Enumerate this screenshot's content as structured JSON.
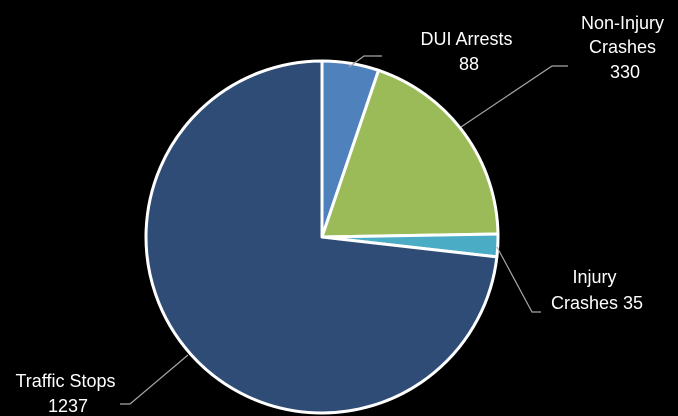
{
  "chart_data": {
    "type": "pie",
    "start_angle_deg": 0,
    "direction": "clockwise",
    "slices": [
      {
        "key": "dui",
        "name": "DUI Arrests",
        "value": 88,
        "color": "#4f81bd",
        "label_lines": [
          "DUI Arrests",
          "88"
        ]
      },
      {
        "key": "noninjury",
        "name": "Non-Injury Crashes",
        "value": 330,
        "color": "#9bbb59",
        "label_lines": [
          "Non-Injury",
          "Crashes",
          "330"
        ]
      },
      {
        "key": "injury",
        "name": "Injury Crashes",
        "value": 35,
        "color": "#4bacc6",
        "label_lines": [
          "Injury",
          "Crashes 35"
        ]
      },
      {
        "key": "traffic",
        "name": "Traffic Stops",
        "value": 1237,
        "color": "#2e4c75",
        "label_lines": [
          "Traffic Stops",
          "1237"
        ]
      }
    ],
    "leader_line_color": "#a6a6a6",
    "background": "#000000"
  }
}
